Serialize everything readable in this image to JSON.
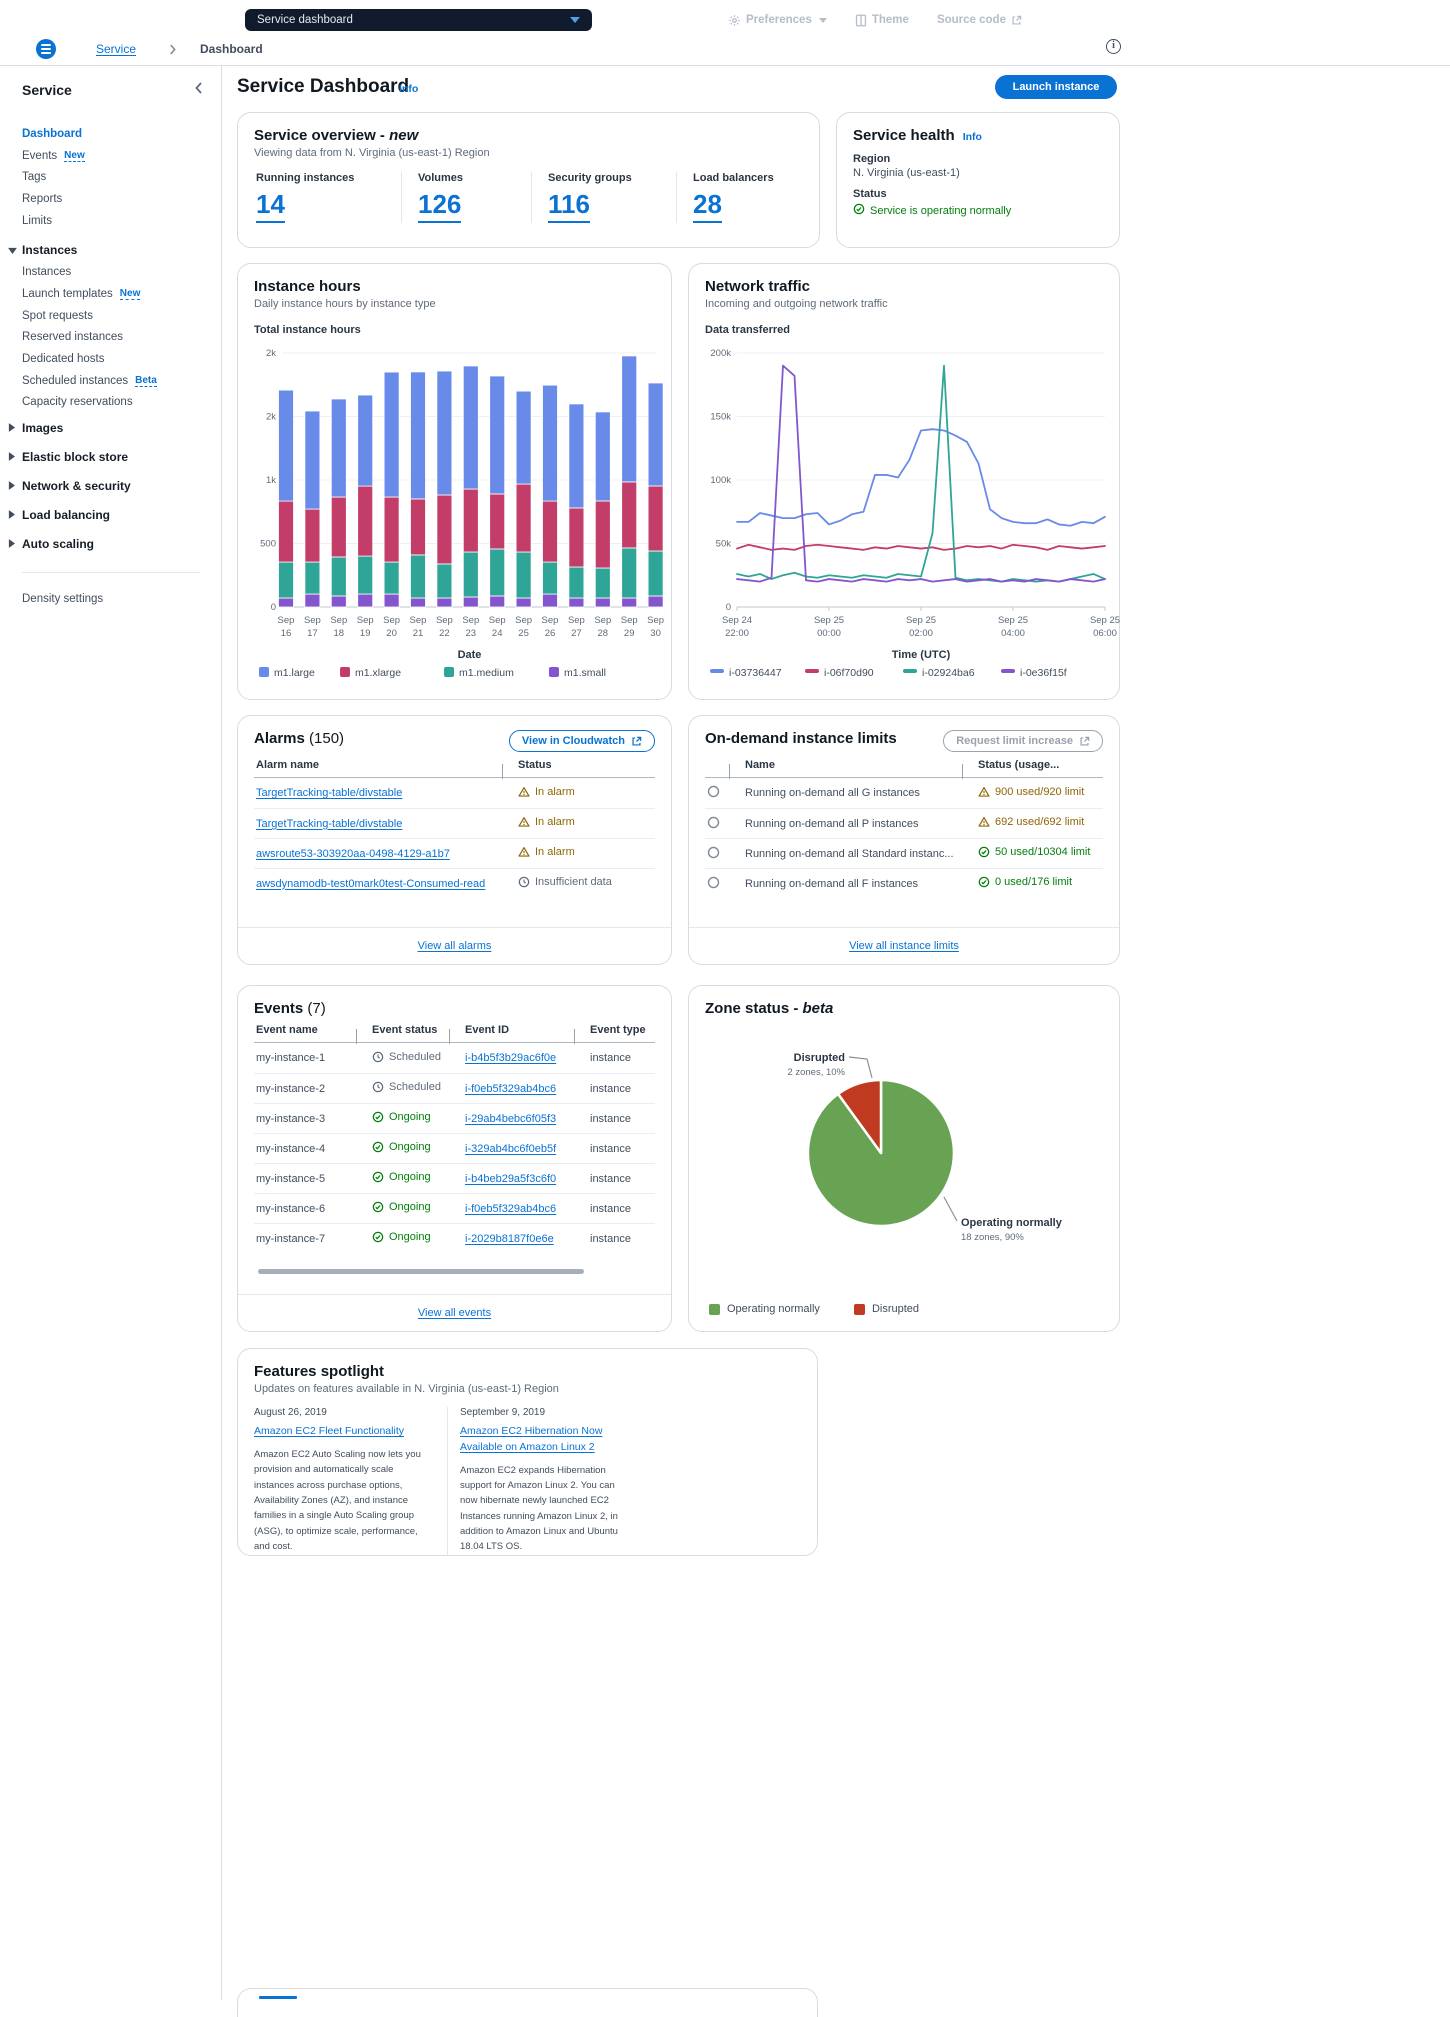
{
  "topbar": {
    "select_label": "Service dashboard",
    "preferences": "Preferences",
    "theme": "Theme",
    "source_code": "Source code"
  },
  "breadcrumb": {
    "root": "Service",
    "current": "Dashboard"
  },
  "sidebar": {
    "heading": "Service",
    "items": [
      {
        "label": "Dashboard",
        "active": true
      },
      {
        "label": "Events",
        "badge": "New"
      },
      {
        "label": "Tags"
      },
      {
        "label": "Reports"
      },
      {
        "label": "Limits"
      }
    ],
    "sections": [
      {
        "label": "Instances",
        "expanded": true,
        "items": [
          {
            "label": "Instances"
          },
          {
            "label": "Launch templates",
            "badge": "New"
          },
          {
            "label": "Spot requests"
          },
          {
            "label": "Reserved instances"
          },
          {
            "label": "Dedicated hosts"
          },
          {
            "label": "Scheduled instances",
            "badge": "Beta"
          },
          {
            "label": "Capacity reservations"
          }
        ]
      },
      {
        "label": "Images"
      },
      {
        "label": "Elastic block store"
      },
      {
        "label": "Network & security"
      },
      {
        "label": "Load balancing"
      },
      {
        "label": "Auto scaling"
      }
    ],
    "footer_item": "Density settings"
  },
  "page": {
    "title": "Service Dashboard",
    "info_label": "Info",
    "launch_button": "Launch instance"
  },
  "overview": {
    "title": "Service overview - ",
    "title_accent": "new",
    "subtitle": "Viewing data from N. Virginia (us-east-1) Region",
    "stats": [
      {
        "label": "Running instances",
        "value": "14"
      },
      {
        "label": "Volumes",
        "value": "126"
      },
      {
        "label": "Security groups",
        "value": "116"
      },
      {
        "label": "Load balancers",
        "value": "28"
      }
    ]
  },
  "health": {
    "title": "Service health",
    "info_label": "Info",
    "region_label": "Region",
    "region_value": "N. Virginia (us-east-1)",
    "status_label": "Status",
    "status_value": "Service is operating normally",
    "status_color": "#037f0c"
  },
  "alarms": {
    "title": "Alarms",
    "count": "(150)",
    "action_button": "View in Cloudwatch",
    "columns": [
      "Alarm name",
      "Status"
    ],
    "rows": [
      {
        "name": "TargetTracking-table/divstable",
        "status": "In alarm",
        "state": "warning"
      },
      {
        "name": "TargetTracking-table/divstable",
        "status": "In alarm",
        "state": "warning"
      },
      {
        "name": "awsroute53-303920aa-0498-4129-a1b7",
        "status": "In alarm",
        "state": "warning"
      },
      {
        "name": "awsdynamodb-test0mark0test-Consumed-read",
        "status": "Insufficient data",
        "state": "pending"
      }
    ],
    "footer_link": "View all alarms"
  },
  "limits": {
    "title": "On-demand instance limits",
    "action_button": "Request limit increase",
    "columns": [
      "Name",
      "Status (usage..."
    ],
    "rows": [
      {
        "name": "Running on-demand all G instances",
        "status": "900 used/920 limit",
        "state": "warning"
      },
      {
        "name": "Running on-demand all P instances",
        "status": "692 used/692 limit",
        "state": "warning"
      },
      {
        "name": "Running on-demand all Standard instanc...",
        "status": "50 used/10304 limit",
        "state": "success"
      },
      {
        "name": "Running on-demand all F instances",
        "status": "0 used/176 limit",
        "state": "success"
      }
    ],
    "footer_link": "View all instance limits"
  },
  "events": {
    "title": "Events",
    "count": "(7)",
    "columns": [
      "Event name",
      "Event status",
      "Event ID",
      "Event type"
    ],
    "rows": [
      {
        "name": "my-instance-1",
        "status": "Scheduled",
        "state": "pending",
        "id": "i-b4b5f3b29ac6f0e",
        "type": "instance"
      },
      {
        "name": "my-instance-2",
        "status": "Scheduled",
        "state": "pending",
        "id": "i-f0eb5f329ab4bc6",
        "type": "instance"
      },
      {
        "name": "my-instance-3",
        "status": "Ongoing",
        "state": "success",
        "id": "i-29ab4bebc6f05f3",
        "type": "instance"
      },
      {
        "name": "my-instance-4",
        "status": "Ongoing",
        "state": "success",
        "id": "i-329ab4bc6f0eb5f",
        "type": "instance"
      },
      {
        "name": "my-instance-5",
        "status": "Ongoing",
        "state": "success",
        "id": "i-b4beb29a5f3c6f0",
        "type": "instance"
      },
      {
        "name": "my-instance-6",
        "status": "Ongoing",
        "state": "success",
        "id": "i-f0eb5f329ab4bc6",
        "type": "instance"
      },
      {
        "name": "my-instance-7",
        "status": "Ongoing",
        "state": "success",
        "id": "i-2029b8187f0e6e",
        "type": "instance"
      }
    ],
    "footer_link": "View all events"
  },
  "zone_status": {
    "title": "Zone status - ",
    "title_accent": "beta",
    "callouts": [
      {
        "title": "Disrupted",
        "subtitle": "2 zones, 10%"
      },
      {
        "title": "Operating normally",
        "subtitle": "18 zones, 90%"
      }
    ]
  },
  "spotlight": {
    "title": "Features spotlight",
    "subtitle": "Updates on features available in N. Virginia (us-east-1) Region",
    "items": [
      {
        "date": "August 26, 2019",
        "link": "Amazon EC2 Fleet Functionality",
        "text": "Amazon EC2 Auto Scaling now lets you provision and automatically scale instances across purchase options, Availability Zones (AZ), and instance families in a single Auto Scaling group (ASG), to optimize scale, performance, and cost."
      },
      {
        "date": "September 9, 2019",
        "link": "Amazon EC2 Hibernation Now Available on Amazon Linux 2",
        "text": "Amazon EC2 expands Hibernation support for Amazon Linux 2. You can now hibernate newly launched EC2 Instances running Amazon Linux 2, in addition to Amazon Linux and Ubuntu 18.04 LTS OS."
      }
    ]
  },
  "chart_data": [
    {
      "type": "bar",
      "title": "Instance hours",
      "subtitle": "Daily instance hours by instance type",
      "axis_title": "Total instance hours",
      "xlabel": "Date",
      "ylim": [
        0,
        2000
      ],
      "ytick_labels": [
        "0",
        "500",
        "1k",
        "2k",
        "2k"
      ],
      "categories": [
        "Sep 16",
        "Sep 17",
        "Sep 18",
        "Sep 19",
        "Sep 20",
        "Sep 21",
        "Sep 22",
        "Sep 23",
        "Sep 24",
        "Sep 25",
        "Sep 26",
        "Sep 27",
        "Sep 28",
        "Sep 29",
        "Sep 30"
      ],
      "stack_bottom_up": [
        "m1.small",
        "m1.medium",
        "m1.xlarge",
        "m1.large"
      ],
      "series": [
        {
          "name": "m1.large",
          "color": "#688ae8",
          "values": [
            874,
            772,
            772,
            717,
            984,
            1000,
            976,
            969,
            929,
            732,
            913,
            819,
            701,
            992,
            811
          ]
        },
        {
          "name": "m1.xlarge",
          "color": "#c33d69",
          "values": [
            480,
            417,
            472,
            551,
            512,
            441,
            543,
            496,
            433,
            535,
            480,
            465,
            528,
            520,
            512
          ]
        },
        {
          "name": "m1.medium",
          "color": "#2ea597",
          "values": [
            283,
            252,
            307,
            299,
            252,
            339,
            268,
            354,
            370,
            362,
            252,
            244,
            236,
            394,
            354
          ]
        },
        {
          "name": "m1.small",
          "color": "#8456ce",
          "values": [
            71,
            102,
            87,
            102,
            102,
            71,
            71,
            79,
            87,
            71,
            102,
            71,
            71,
            71,
            87
          ]
        }
      ]
    },
    {
      "type": "line",
      "title": "Network traffic",
      "subtitle": "Incoming and outgoing network traffic",
      "axis_title": "Data transferred",
      "xlabel": "Time (UTC)",
      "ylim": [
        0,
        200000
      ],
      "unit": "thousands",
      "ytick_labels": [
        "0",
        "50k",
        "100k",
        "150k",
        "200k"
      ],
      "xtick_labels": [
        [
          "Sep 24",
          "22:00"
        ],
        [
          "Sep 25",
          "00:00"
        ],
        [
          "Sep 25",
          "02:00"
        ],
        [
          "Sep 25",
          "04:00"
        ],
        [
          "Sep 25",
          "06:00"
        ]
      ],
      "series": [
        {
          "name": "i-03736447",
          "color": "#688ae8",
          "values": [
            67,
            67,
            74,
            72,
            70,
            70,
            73,
            74,
            65,
            68,
            73,
            75,
            104,
            104,
            102,
            116,
            139,
            140,
            139,
            135,
            130,
            113,
            77,
            70,
            67,
            66,
            66,
            69,
            65,
            64,
            67,
            66,
            71
          ]
        },
        {
          "name": "i-06f70d90",
          "color": "#c33d69",
          "values": [
            46,
            49,
            47,
            45,
            46,
            45,
            48,
            49,
            48,
            47,
            46,
            45,
            47,
            46,
            48,
            47,
            46,
            47,
            45,
            46,
            48,
            47,
            48,
            46,
            49,
            48,
            47,
            45,
            48,
            47,
            46,
            47,
            48
          ]
        },
        {
          "name": "i-02924ba6",
          "color": "#2ea597",
          "values": [
            26,
            24,
            26,
            22,
            25,
            27,
            24,
            23,
            25,
            24,
            23,
            25,
            24,
            23,
            26,
            25,
            24,
            58,
            190,
            23,
            21,
            22,
            21,
            20,
            22,
            21,
            20,
            21,
            20,
            22,
            24,
            26,
            22
          ]
        },
        {
          "name": "i-0e36f15f",
          "color": "#8456ce",
          "values": [
            22,
            21,
            20,
            23,
            190,
            182,
            21,
            20,
            22,
            21,
            20,
            22,
            21,
            20,
            22,
            21,
            22,
            20,
            21,
            22,
            20,
            21,
            22,
            20,
            21,
            20,
            22,
            21,
            20,
            22,
            21,
            20,
            22
          ]
        }
      ]
    },
    {
      "type": "pie",
      "title": "Zone status - beta",
      "slices": [
        {
          "label": "Operating normally",
          "zones": 18,
          "pct": 90,
          "color": "#67a353"
        },
        {
          "label": "Disrupted",
          "zones": 2,
          "pct": 10,
          "color": "#c03a22"
        }
      ],
      "legend_position": "bottom"
    }
  ]
}
